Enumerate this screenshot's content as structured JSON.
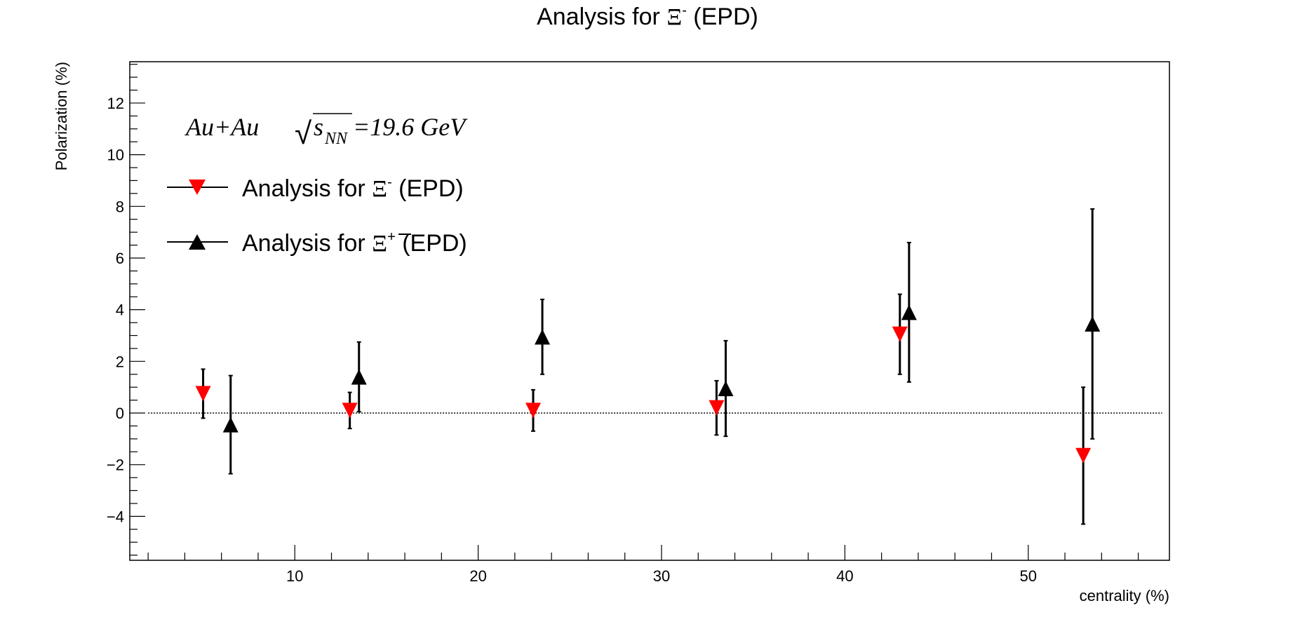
{
  "chart_data": {
    "type": "scatter",
    "title": {
      "prefix": "Analysis for ",
      "symbol": "Ξ",
      "superscript": "-",
      "suffix": " (EPD)"
    },
    "xlabel": "centrality (%)",
    "ylabel": "Polarization (%)",
    "xlim": [
      1,
      57.7
    ],
    "ylim": [
      -5.7,
      13.6
    ],
    "x_ticks": [
      10,
      20,
      30,
      40,
      50
    ],
    "y_ticks": [
      -4,
      -2,
      0,
      2,
      4,
      6,
      8,
      10,
      12
    ],
    "y_tick_labels": [
      "−4",
      "−2",
      "0",
      "2",
      "4",
      "6",
      "8",
      "10",
      "12"
    ],
    "grid": false,
    "reference_line": {
      "y": 0,
      "style": "dotted"
    },
    "annotation": {
      "system": "Au+Au",
      "sqrt_symbol": "√",
      "s": "s",
      "subscript": "NN",
      "energy": "=19.6 GeV"
    },
    "legend_position": "top-left",
    "series": [
      {
        "name": "Analysis for Ξ- (EPD)",
        "label_prefix": "Analysis for ",
        "label_symbol": "Ξ",
        "label_superscript": "-",
        "label_suffix": " (EPD)",
        "overline": false,
        "marker": "triangle-down",
        "color": "#ff0000",
        "x": [
          5,
          13,
          23,
          33,
          43,
          53
        ],
        "y": [
          0.75,
          0.1,
          0.1,
          0.2,
          3.05,
          -1.65
        ],
        "yerr": [
          0.95,
          0.7,
          0.8,
          1.05,
          1.55,
          2.65
        ]
      },
      {
        "name": "Analysis for Ξ+ (EPD)",
        "label_prefix": "Analysis for ",
        "label_symbol": "Ξ",
        "label_superscript": "+",
        "label_suffix": " (EPD)",
        "overline": true,
        "marker": "triangle-up",
        "color": "#000000",
        "x": [
          6.5,
          13.5,
          23.5,
          33.5,
          43.5,
          53.5
        ],
        "y": [
          -0.45,
          1.4,
          2.95,
          0.95,
          3.9,
          3.45
        ],
        "yerr": [
          1.9,
          1.35,
          1.45,
          1.85,
          2.7,
          4.45
        ]
      }
    ]
  }
}
